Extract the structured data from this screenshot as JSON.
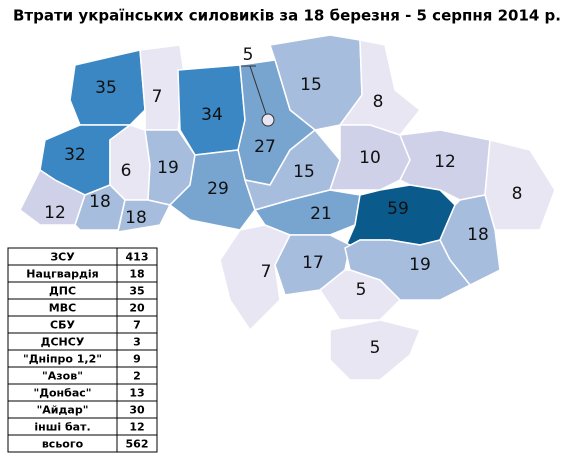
{
  "title": "Втрати українських силовиків за 18 березня - 5 серпня 2014 р.",
  "regions": [
    {
      "value": 35,
      "color": "#3a87c3"
    },
    {
      "value": 7,
      "color": "#e8e6f3"
    },
    {
      "value": 34,
      "color": "#3a87c3"
    },
    {
      "value": 5,
      "color": "#e8e6f3"
    },
    {
      "value": 15,
      "color": "#a7bddd"
    },
    {
      "value": 8,
      "color": "#e8e6f3"
    },
    {
      "value": 27,
      "color": "#78a4d0"
    },
    {
      "value": 32,
      "color": "#3a87c3"
    },
    {
      "value": 6,
      "color": "#e8e6f3"
    },
    {
      "value": 19,
      "color": "#a7bddd"
    },
    {
      "value": 29,
      "color": "#78a4d0"
    },
    {
      "value": 15,
      "color": "#a7bddd"
    },
    {
      "value": 10,
      "color": "#cfd1e8"
    },
    {
      "value": 12,
      "color": "#cfd1e8"
    },
    {
      "value": 8,
      "color": "#e8e6f3"
    },
    {
      "value": 12,
      "color": "#cfd1e8"
    },
    {
      "value": 18,
      "color": "#a7bddd"
    },
    {
      "value": 18,
      "color": "#a7bddd"
    },
    {
      "value": 21,
      "color": "#78a4d0"
    },
    {
      "value": 59,
      "color": "#0b5a8c"
    },
    {
      "value": 18,
      "color": "#a7bddd"
    },
    {
      "value": 7,
      "color": "#e8e6f3"
    },
    {
      "value": 17,
      "color": "#a7bddd"
    },
    {
      "value": 19,
      "color": "#a7bddd"
    },
    {
      "value": 5,
      "color": "#e8e6f3"
    },
    {
      "value": 5,
      "color": "#e8e6f3"
    }
  ],
  "table": {
    "rows": [
      [
        "ЗСУ",
        413
      ],
      [
        "Нацгвардія",
        18
      ],
      [
        "ДПС",
        35
      ],
      [
        "МВС",
        20
      ],
      [
        "СБУ",
        7
      ],
      [
        "ДСНСУ",
        3
      ],
      [
        "\"Дніпро 1,2\"",
        9
      ],
      [
        "\"Азов\"",
        2
      ],
      [
        "\"Донбас\"",
        13
      ],
      [
        "\"Айдар\"",
        30
      ],
      [
        "інші бат.",
        12
      ],
      [
        "всього",
        562
      ]
    ]
  }
}
